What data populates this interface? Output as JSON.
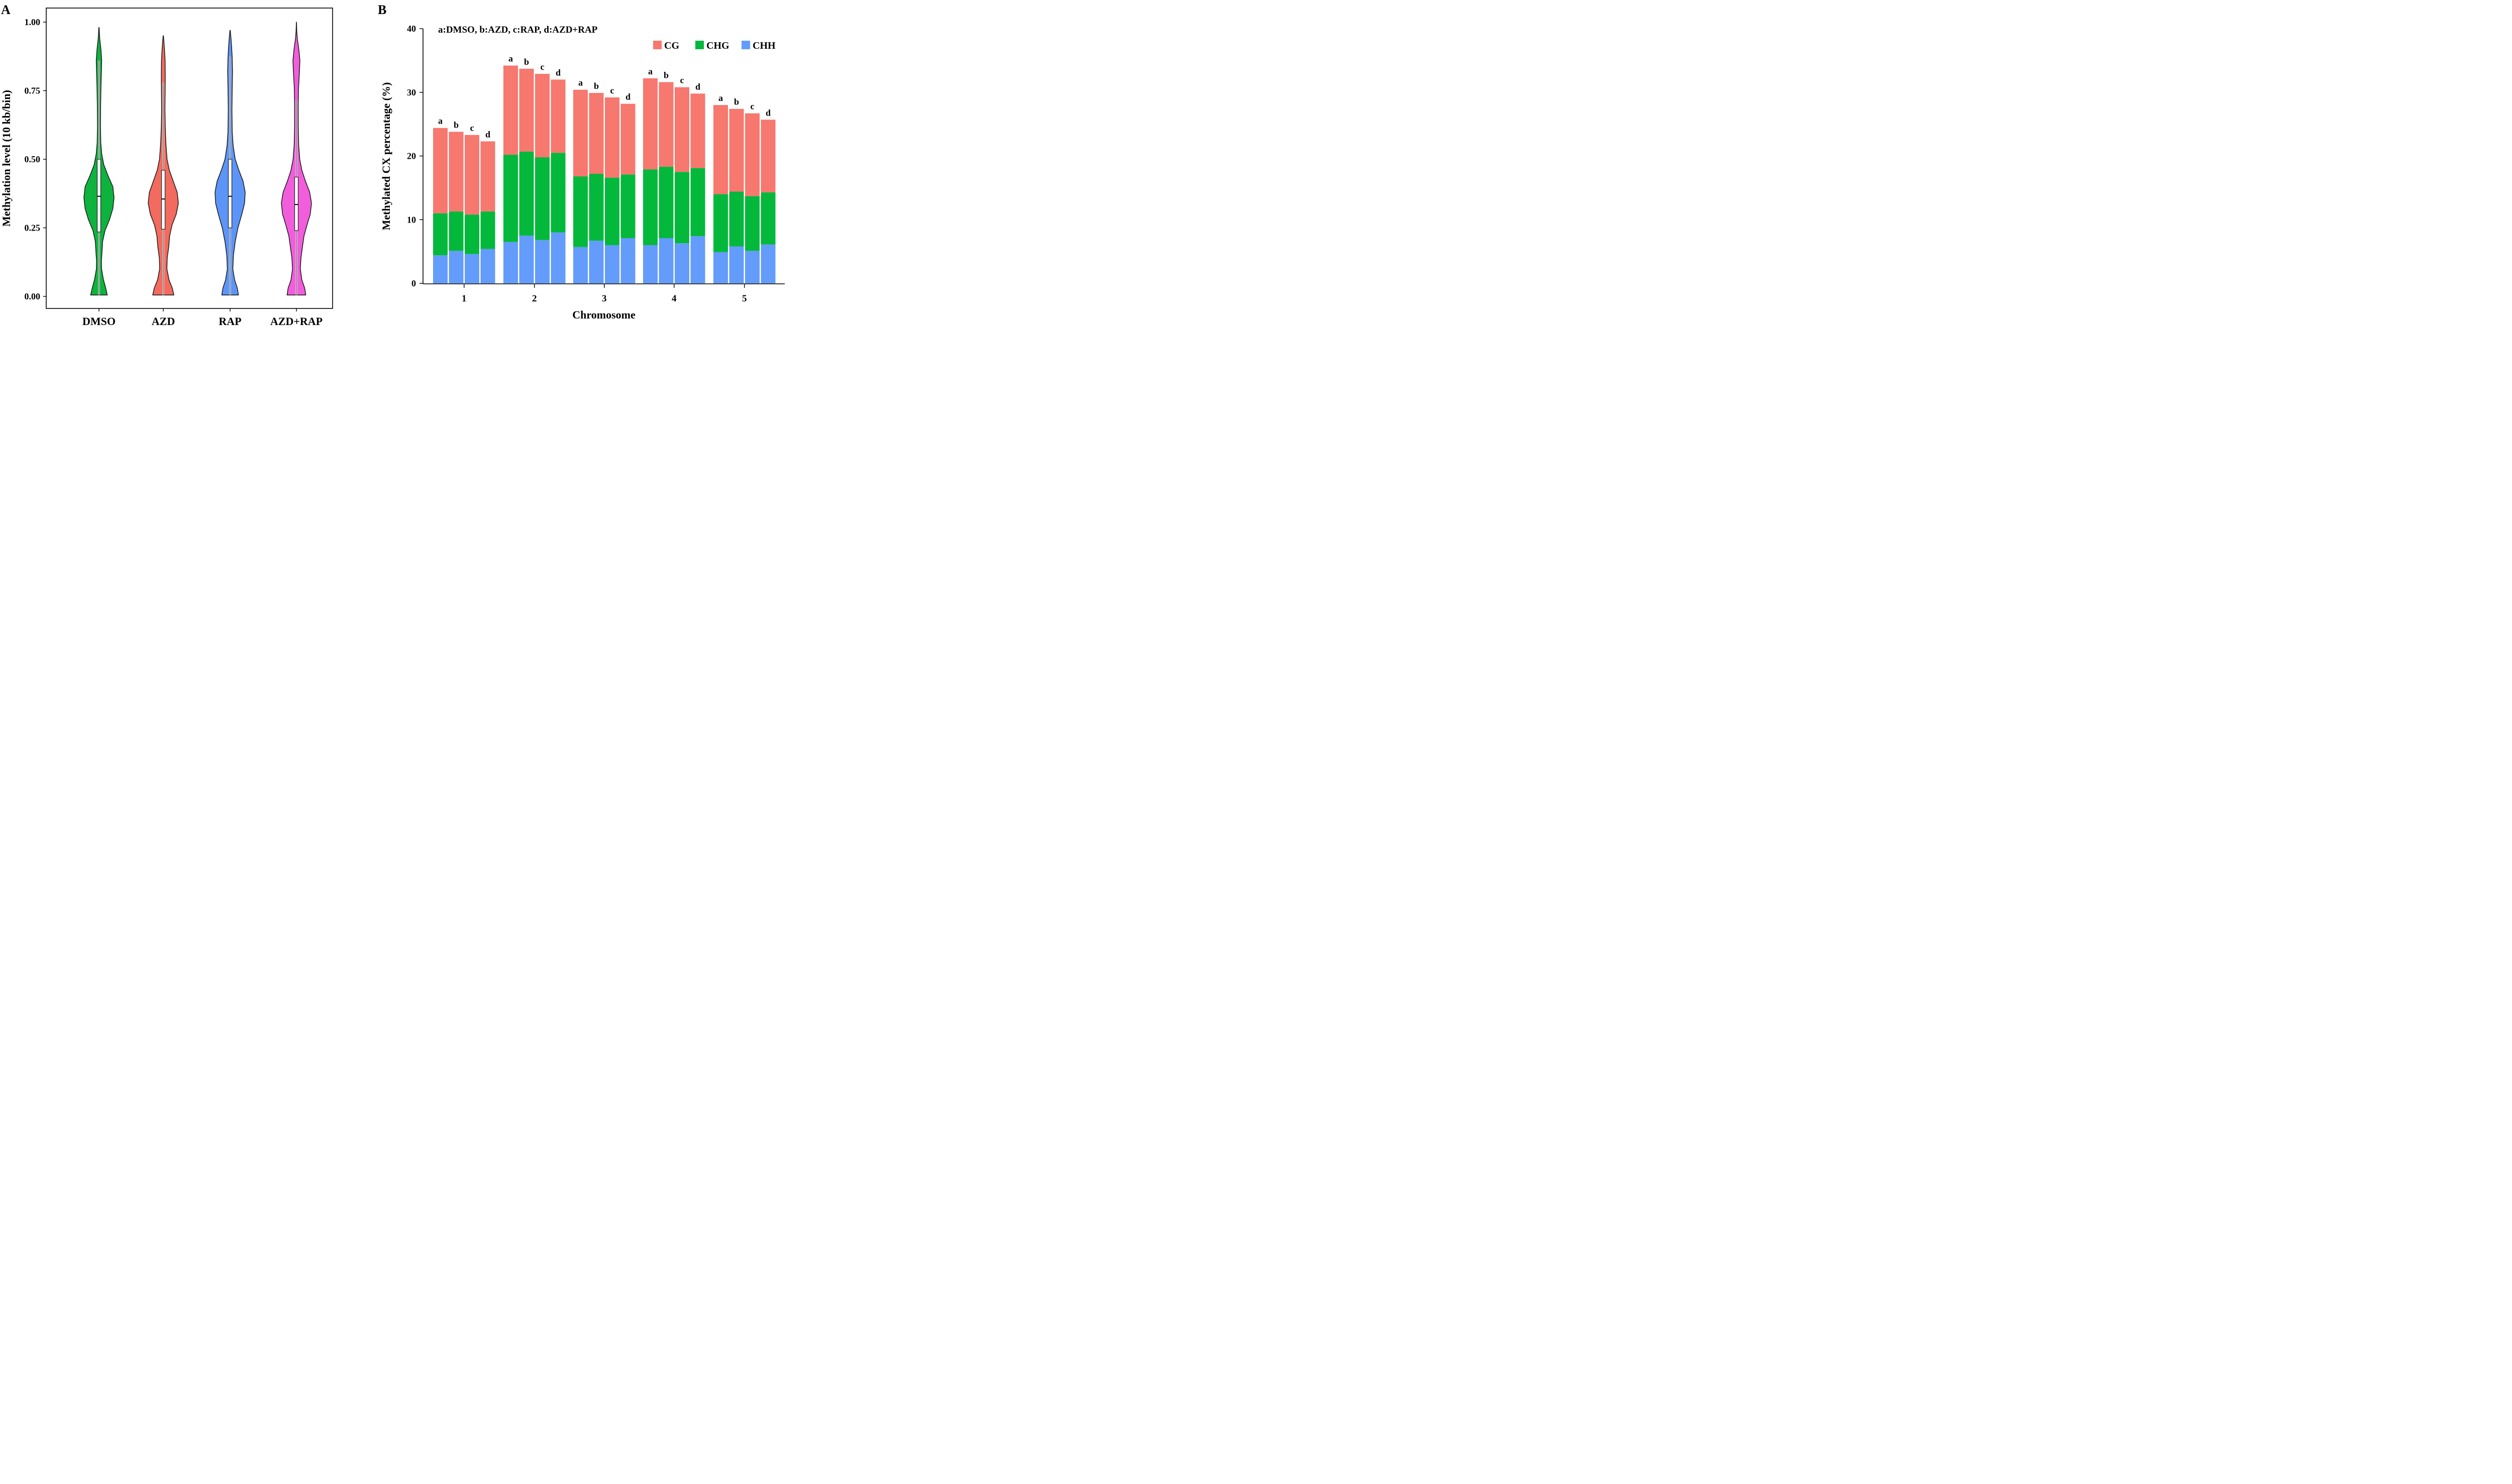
{
  "chart_data": [
    {
      "panel_label": "A",
      "type": "violin",
      "ylabel": "Methylation level (10 kb/bin)",
      "ylim": [
        0,
        1
      ],
      "yticks": [
        "0.00",
        "0.25",
        "0.50",
        "0.75",
        "1.00"
      ],
      "groups": [
        {
          "name": "DMSO",
          "color": "#0db33d",
          "y_min": 0.005,
          "y_max": 0.98,
          "box": {
            "q1": 0.235,
            "median": 0.365,
            "q3": 0.5,
            "whisker_low": 0.005,
            "whisker_high": 0.86
          },
          "density": [
            [
              0.005,
              0.55
            ],
            [
              0.03,
              0.45
            ],
            [
              0.06,
              0.3
            ],
            [
              0.1,
              0.17
            ],
            [
              0.13,
              0.16
            ],
            [
              0.16,
              0.2
            ],
            [
              0.2,
              0.24
            ],
            [
              0.24,
              0.4
            ],
            [
              0.28,
              0.7
            ],
            [
              0.32,
              0.92
            ],
            [
              0.36,
              1.0
            ],
            [
              0.4,
              0.92
            ],
            [
              0.44,
              0.6
            ],
            [
              0.48,
              0.32
            ],
            [
              0.52,
              0.18
            ],
            [
              0.56,
              0.12
            ],
            [
              0.62,
              0.1
            ],
            [
              0.7,
              0.11
            ],
            [
              0.76,
              0.13
            ],
            [
              0.82,
              0.16
            ],
            [
              0.86,
              0.18
            ],
            [
              0.9,
              0.13
            ],
            [
              0.94,
              0.05
            ],
            [
              0.98,
              0.01
            ]
          ]
        },
        {
          "name": "AZD",
          "color": "#f26b5e",
          "y_min": 0.005,
          "y_max": 0.95,
          "box": {
            "q1": 0.245,
            "median": 0.355,
            "q3": 0.46,
            "whisker_low": 0.005,
            "whisker_high": 0.78
          },
          "density": [
            [
              0.005,
              0.7
            ],
            [
              0.03,
              0.6
            ],
            [
              0.06,
              0.38
            ],
            [
              0.1,
              0.24
            ],
            [
              0.14,
              0.26
            ],
            [
              0.18,
              0.36
            ],
            [
              0.22,
              0.42
            ],
            [
              0.26,
              0.58
            ],
            [
              0.3,
              0.86
            ],
            [
              0.34,
              1.0
            ],
            [
              0.38,
              0.92
            ],
            [
              0.42,
              0.66
            ],
            [
              0.46,
              0.4
            ],
            [
              0.5,
              0.25
            ],
            [
              0.56,
              0.17
            ],
            [
              0.62,
              0.13
            ],
            [
              0.68,
              0.11
            ],
            [
              0.74,
              0.12
            ],
            [
              0.8,
              0.13
            ],
            [
              0.86,
              0.12
            ],
            [
              0.9,
              0.08
            ],
            [
              0.93,
              0.04
            ],
            [
              0.95,
              0.01
            ]
          ]
        },
        {
          "name": "RAP",
          "color": "#5c95f7",
          "y_min": 0.005,
          "y_max": 0.97,
          "box": {
            "q1": 0.25,
            "median": 0.365,
            "q3": 0.5,
            "whisker_low": 0.005,
            "whisker_high": 0.875
          },
          "density": [
            [
              0.005,
              0.55
            ],
            [
              0.03,
              0.48
            ],
            [
              0.06,
              0.3
            ],
            [
              0.1,
              0.18
            ],
            [
              0.15,
              0.22
            ],
            [
              0.2,
              0.34
            ],
            [
              0.25,
              0.52
            ],
            [
              0.3,
              0.78
            ],
            [
              0.34,
              0.96
            ],
            [
              0.38,
              1.0
            ],
            [
              0.42,
              0.86
            ],
            [
              0.46,
              0.58
            ],
            [
              0.5,
              0.34
            ],
            [
              0.55,
              0.2
            ],
            [
              0.6,
              0.14
            ],
            [
              0.68,
              0.12
            ],
            [
              0.76,
              0.14
            ],
            [
              0.82,
              0.16
            ],
            [
              0.87,
              0.14
            ],
            [
              0.91,
              0.1
            ],
            [
              0.94,
              0.06
            ],
            [
              0.97,
              0.01
            ]
          ]
        },
        {
          "name": "AZD+RAP",
          "color": "#f25ddc",
          "y_min": 0.005,
          "y_max": 1.0,
          "box": {
            "q1": 0.24,
            "median": 0.335,
            "q3": 0.435,
            "whisker_low": 0.005,
            "whisker_high": 0.715
          },
          "density": [
            [
              0.005,
              0.62
            ],
            [
              0.03,
              0.55
            ],
            [
              0.06,
              0.36
            ],
            [
              0.1,
              0.26
            ],
            [
              0.14,
              0.3
            ],
            [
              0.18,
              0.4
            ],
            [
              0.22,
              0.5
            ],
            [
              0.26,
              0.7
            ],
            [
              0.3,
              0.92
            ],
            [
              0.34,
              1.0
            ],
            [
              0.38,
              0.88
            ],
            [
              0.42,
              0.6
            ],
            [
              0.46,
              0.36
            ],
            [
              0.5,
              0.22
            ],
            [
              0.55,
              0.15
            ],
            [
              0.62,
              0.12
            ],
            [
              0.7,
              0.12
            ],
            [
              0.76,
              0.14
            ],
            [
              0.82,
              0.2
            ],
            [
              0.86,
              0.23
            ],
            [
              0.9,
              0.16
            ],
            [
              0.94,
              0.06
            ],
            [
              0.97,
              0.02
            ],
            [
              1.0,
              0.005
            ]
          ]
        }
      ]
    },
    {
      "panel_label": "B",
      "type": "bar",
      "stacked": true,
      "annotation": "a:DMSO, b:AZD, c:RAP, d:AZD+RAP",
      "xlabel": "Chromosome",
      "ylabel": "Methylated CX percentage (%)",
      "ylim": [
        0,
        40
      ],
      "yticks": [
        "0",
        "10",
        "20",
        "30",
        "40"
      ],
      "categories": [
        "1",
        "2",
        "3",
        "4",
        "5"
      ],
      "bar_labels": [
        "a",
        "b",
        "c",
        "d"
      ],
      "legend": [
        "CG",
        "CHG",
        "CHH"
      ],
      "colors": {
        "CG": "#f6786f",
        "CHG": "#03b83b",
        "CHH": "#639cfa"
      },
      "series": [
        {
          "name": "CHH",
          "values": [
            [
              4.4,
              5.1,
              4.6,
              5.4
            ],
            [
              6.5,
              7.5,
              6.8,
              8.0
            ],
            [
              5.7,
              6.7,
              6.0,
              7.1
            ],
            [
              6.0,
              7.1,
              6.3,
              7.4
            ],
            [
              4.9,
              5.8,
              5.1,
              6.1
            ]
          ]
        },
        {
          "name": "CHG",
          "values": [
            [
              6.6,
              6.2,
              6.2,
              5.9
            ],
            [
              13.7,
              13.2,
              13.0,
              12.5
            ],
            [
              11.1,
              10.5,
              10.6,
              10.0
            ],
            [
              11.9,
              11.2,
              11.2,
              10.7
            ],
            [
              9.1,
              8.6,
              8.6,
              8.2
            ]
          ]
        },
        {
          "name": "CG",
          "values": [
            [
              13.4,
              12.5,
              12.5,
              11.0
            ],
            [
              14.0,
              13.0,
              13.1,
              11.5
            ],
            [
              13.6,
              12.7,
              12.6,
              11.1
            ],
            [
              14.3,
              13.3,
              13.3,
              11.7
            ],
            [
              14.0,
              13.0,
              13.0,
              11.4
            ]
          ]
        }
      ]
    }
  ]
}
